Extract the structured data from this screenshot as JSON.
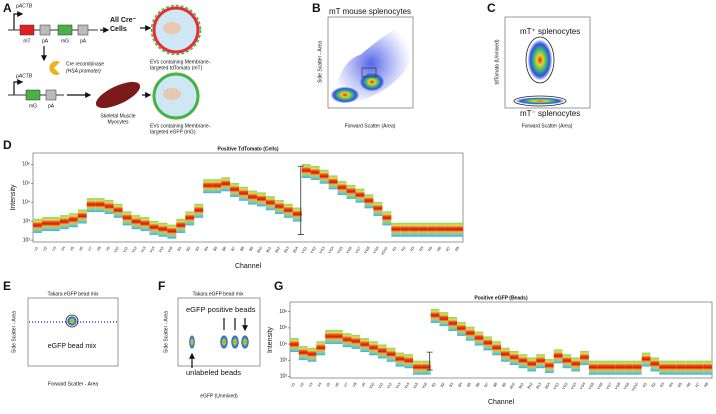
{
  "panel_labels": [
    "A",
    "B",
    "C",
    "D",
    "E",
    "F",
    "G"
  ],
  "diagram": {
    "promoter_top": "pACTB",
    "gene1": "mT",
    "pa1": "pA",
    "gene2": "mG",
    "pa2": "pA",
    "target": [
      "All Cre⁻",
      "Cells"
    ],
    "enzyme": "Cre recombinase",
    "enzyme_promoter": "(HSA promoter)",
    "vesicle_top": [
      "EVs containing Membrane-",
      "targeted tdTomato (mT)"
    ],
    "promoter_bottom": "pACTB",
    "gene3": "mG",
    "pa3": "pA",
    "cell_type": [
      "Skeletal Muscle",
      "Myocytes"
    ],
    "vesicle_bottom": [
      "EVs containing Membrane-",
      "targeted eGFP (mG)"
    ]
  },
  "flow_B": {
    "title": "mT mouse splenocytes",
    "ylabel": "Side Scatter - Area",
    "xlabel": "Forward Scatter (Area)"
  },
  "flow_C": {
    "label_pos": "mT⁺ splenocytes",
    "label_neg": "mT⁻ splenocytes",
    "ylabel": "tdTomato (Unmixed)",
    "xlabel": "Forward Scatter (Area)"
  },
  "flow_E": {
    "title": "Takara eGFP bead mix",
    "label": "eGFP bead mix",
    "ylabel": "Side Scatter - Area",
    "xlabel": "Forward Scatter - Area"
  },
  "flow_F": {
    "title": "Takara eGFP bead mix",
    "label_pos": "eGFP positive beads",
    "label_neg": "unlabeled beads",
    "ylabel": "Side Scatter - Area",
    "xlabel": "eGFP (Unmixed)"
  },
  "chart_data": [
    {
      "type": "spectrum",
      "title": "Positive TdTomato (Cells)",
      "ylabel": "Intensity",
      "xlabel": "Channel",
      "categories": [
        "V1",
        "V2",
        "V3",
        "V4",
        "V5",
        "V6",
        "V7",
        "V8",
        "V9",
        "V10",
        "V11",
        "V12",
        "V13",
        "V14",
        "V15",
        "V16",
        "B1",
        "B2",
        "B3",
        "B4",
        "B5",
        "B6",
        "B7",
        "B8",
        "B9",
        "B10",
        "B11",
        "B12",
        "B13",
        "B14",
        "YG1",
        "YG2",
        "YG3",
        "YG4",
        "YG5",
        "YG6",
        "YG7",
        "YG8",
        "YG9",
        "YG10",
        "R1",
        "R2",
        "R3",
        "R4",
        "R5",
        "R6",
        "R7",
        "R8"
      ],
      "values": [
        2.8,
        2.9,
        2.9,
        3.0,
        3.1,
        3.3,
        3.9,
        3.9,
        3.8,
        3.6,
        3.2,
        3.0,
        2.9,
        2.7,
        2.6,
        2.5,
        2.8,
        3.2,
        3.6,
        4.9,
        4.9,
        5.0,
        4.7,
        4.5,
        4.3,
        4.2,
        4.0,
        3.8,
        3.6,
        3.4,
        5.7,
        5.6,
        5.4,
        5.1,
        4.8,
        4.6,
        4.4,
        4.1,
        3.7,
        3.2,
        2.6,
        2.6,
        2.6,
        2.6,
        2.6,
        2.6,
        2.6,
        2.6
      ],
      "error_range": [
        2.3,
        5.9
      ],
      "ylim": [
        1.9,
        6.6
      ],
      "yticks": [
        {
          "value": 2,
          "label": "10²"
        },
        {
          "value": 3,
          "label": "10³"
        },
        {
          "value": 4,
          "label": "10⁴"
        },
        {
          "value": 5,
          "label": "10⁵"
        },
        {
          "value": 6,
          "label": "10⁶"
        }
      ]
    },
    {
      "type": "spectrum",
      "title": "Positive eGFP (Beads)",
      "ylabel": "Intensity",
      "xlabel": "Channel",
      "categories": [
        "V1",
        "V2",
        "V3",
        "V4",
        "V5",
        "V6",
        "V7",
        "V8",
        "V9",
        "V10",
        "V11",
        "V12",
        "V13",
        "V14",
        "V15",
        "V16",
        "B1",
        "B2",
        "B3",
        "B4",
        "B5",
        "B6",
        "B7",
        "B8",
        "B9",
        "B10",
        "B11",
        "B12",
        "B13",
        "B14",
        "YG1",
        "YG2",
        "YG3",
        "YG4",
        "YG5",
        "YG6",
        "YG7",
        "YG8",
        "YG9",
        "YG10",
        "R1",
        "R2",
        "R3",
        "R4",
        "R5",
        "R6",
        "R7",
        "R8"
      ],
      "values": [
        4.0,
        3.5,
        3.4,
        3.8,
        4.5,
        4.5,
        4.3,
        4.2,
        4.0,
        3.8,
        3.6,
        3.4,
        3.1,
        3.0,
        2.6,
        2.6,
        5.8,
        5.6,
        5.3,
        5.0,
        4.7,
        4.4,
        4.1,
        3.8,
        3.4,
        3.2,
        3.0,
        2.8,
        3.0,
        2.7,
        3.3,
        3.0,
        2.8,
        3.2,
        2.6,
        2.6,
        2.6,
        2.6,
        2.6,
        2.6,
        3.1,
        2.8,
        2.6,
        2.6,
        2.6,
        2.6,
        2.6,
        2.6
      ],
      "error_range": [
        2.4,
        3.5
      ],
      "ylim": [
        1.9,
        6.6
      ],
      "yticks": [
        {
          "value": 2,
          "label": "10²"
        },
        {
          "value": 3,
          "label": "10³"
        },
        {
          "value": 4,
          "label": "10⁴"
        },
        {
          "value": 5,
          "label": "10⁵"
        },
        {
          "value": 6,
          "label": "10⁶"
        }
      ]
    }
  ]
}
